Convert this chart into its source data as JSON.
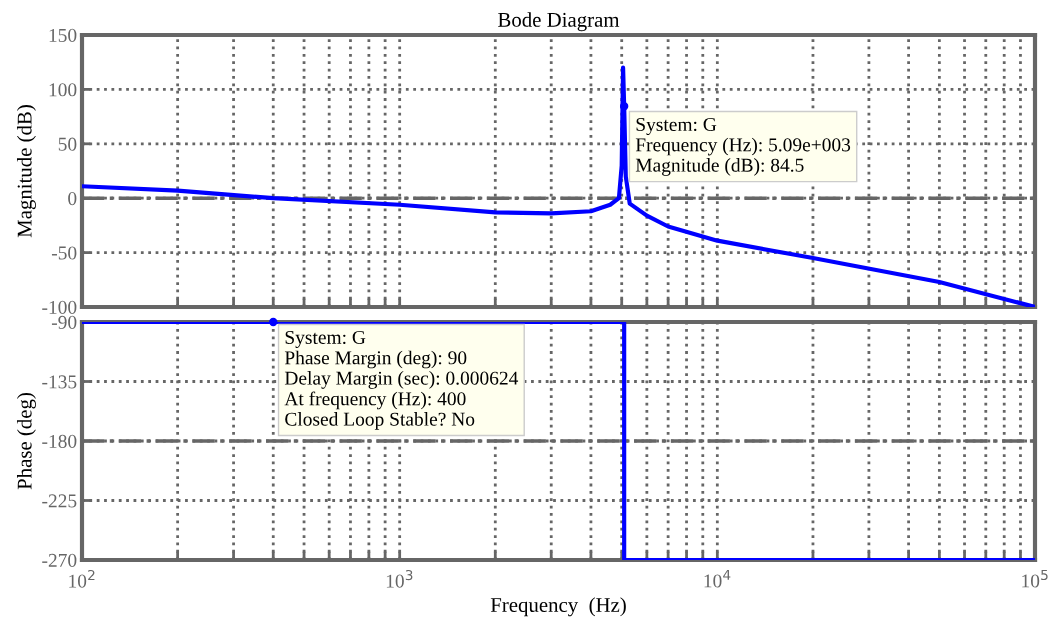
{
  "chart_data": [
    {
      "type": "line",
      "title": "Bode Diagram",
      "ylabel": "Magnitude (dB)",
      "log": "x",
      "xlim": [
        100,
        100000
      ],
      "xticks": [
        {
          "value": 100,
          "label": null
        },
        {
          "value": 200,
          "label": null
        },
        {
          "value": 300,
          "label": null
        },
        {
          "value": 400,
          "label": null
        },
        {
          "value": 500,
          "label": null
        },
        {
          "value": 600,
          "label": null
        },
        {
          "value": 700,
          "label": null
        },
        {
          "value": 800,
          "label": null
        },
        {
          "value": 900,
          "label": null
        },
        {
          "value": 1000,
          "label": null
        },
        {
          "value": 2000,
          "label": null
        },
        {
          "value": 3000,
          "label": null
        },
        {
          "value": 4000,
          "label": null
        },
        {
          "value": 5000,
          "label": null
        },
        {
          "value": 6000,
          "label": null
        },
        {
          "value": 7000,
          "label": null
        },
        {
          "value": 8000,
          "label": null
        },
        {
          "value": 9000,
          "label": null
        },
        {
          "value": 10000,
          "label": null
        },
        {
          "value": 20000,
          "label": null
        },
        {
          "value": 30000,
          "label": null
        },
        {
          "value": 40000,
          "label": null
        },
        {
          "value": 50000,
          "label": null
        },
        {
          "value": 60000,
          "label": null
        },
        {
          "value": 70000,
          "label": null
        },
        {
          "value": 80000,
          "label": null
        },
        {
          "value": 90000,
          "label": null
        },
        {
          "value": 100000,
          "label": null
        }
      ],
      "ylim": [
        -100,
        150
      ],
      "yticks": [
        -100,
        -50,
        0,
        50,
        100,
        150
      ],
      "grid": true,
      "tick_labels": "y",
      "line_style": "solid",
      "marker": "none",
      "series": [
        {
          "color": "#0000ff",
          "x": [
            100,
            200,
            400,
            1000,
            2000,
            3000,
            4000,
            4600,
            4900,
            5000,
            5050,
            5090,
            5150,
            5300,
            6000,
            7000,
            10000,
            20000,
            50000,
            100000
          ],
          "values": [
            11,
            7,
            0,
            -6,
            -13,
            -14,
            -12,
            -6,
            0,
            30,
            120,
            84.5,
            20,
            -5,
            -16,
            -26,
            -39,
            -55,
            -77,
            -100
          ]
        }
      ],
      "ref_lines": [
        {
          "axis": "y",
          "value": 0,
          "label": null,
          "color": "#666666",
          "line_style": "dashdot"
        }
      ],
      "annotations": [
        {
          "text": "System: G\nFrequency (Hz): 5.09e+003\nMagnitude (dB): 84.5",
          "x": 5090,
          "y": 84.5
        }
      ]
    },
    {
      "type": "step",
      "xlabel": "Frequency  (Hz)",
      "ylabel": "Phase (deg)",
      "log": "x",
      "xlim": [
        100,
        100000
      ],
      "xticks": [
        {
          "value": 100,
          "label": "10$^{2}$"
        },
        {
          "value": 200,
          "label": null
        },
        {
          "value": 300,
          "label": null
        },
        {
          "value": 400,
          "label": null
        },
        {
          "value": 500,
          "label": null
        },
        {
          "value": 600,
          "label": null
        },
        {
          "value": 700,
          "label": null
        },
        {
          "value": 800,
          "label": null
        },
        {
          "value": 900,
          "label": null
        },
        {
          "value": 1000,
          "label": "10$^{3}$"
        },
        {
          "value": 2000,
          "label": null
        },
        {
          "value": 3000,
          "label": null
        },
        {
          "value": 4000,
          "label": null
        },
        {
          "value": 5000,
          "label": null
        },
        {
          "value": 6000,
          "label": null
        },
        {
          "value": 7000,
          "label": null
        },
        {
          "value": 8000,
          "label": null
        },
        {
          "value": 9000,
          "label": null
        },
        {
          "value": 10000,
          "label": "10$^{4}$"
        },
        {
          "value": 20000,
          "label": null
        },
        {
          "value": 30000,
          "label": null
        },
        {
          "value": 40000,
          "label": null
        },
        {
          "value": 50000,
          "label": null
        },
        {
          "value": 60000,
          "label": null
        },
        {
          "value": 70000,
          "label": null
        },
        {
          "value": 80000,
          "label": null
        },
        {
          "value": 90000,
          "label": null
        },
        {
          "value": 100000,
          "label": "10$^{5}$"
        }
      ],
      "ylim": [
        -270,
        -90
      ],
      "yticks": [
        -270,
        -225,
        -180,
        -135,
        -90
      ],
      "grid": true,
      "line_style": "solid",
      "marker": "none",
      "series": [
        {
          "color": "#0000ff",
          "x": [
            100,
            5090,
            100000
          ],
          "values": [
            -90,
            -270,
            -270
          ]
        }
      ],
      "ref_lines": [
        {
          "axis": "y",
          "value": -180,
          "label": null,
          "color": "#666666",
          "line_style": "dashdot"
        }
      ],
      "annotations": [
        {
          "text": "System: G\nPhase Margin (deg): 90\nDelay Margin (sec): 0.000624\nAt frequency (Hz): 400\nClosed Loop Stable? No",
          "x": 400,
          "y": -90
        }
      ]
    }
  ]
}
